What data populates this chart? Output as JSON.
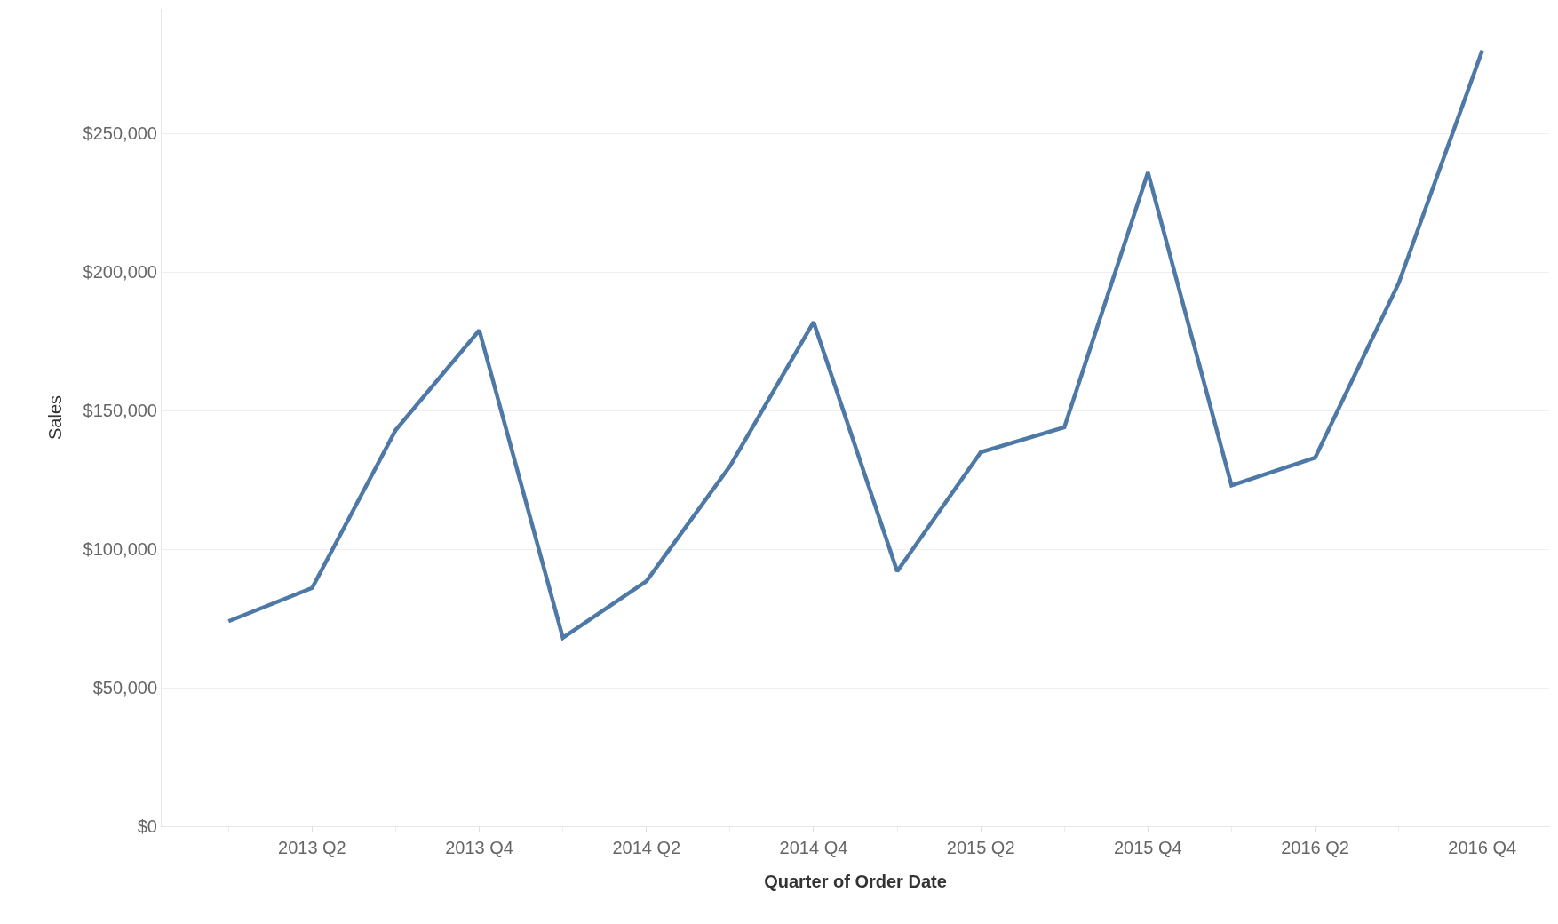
{
  "chart_data": {
    "type": "line",
    "xlabel": "Quarter of Order Date",
    "ylabel": "Sales",
    "categories": [
      null,
      "2013 Q2",
      null,
      "2013 Q4",
      null,
      "2014 Q2",
      null,
      "2014 Q4",
      null,
      "2015 Q2",
      null,
      "2015 Q4",
      null,
      "2016 Q2",
      null,
      "2016 Q4"
    ],
    "series": [
      {
        "color": "#4e79a7",
        "values": [
          74000,
          86000,
          143000,
          179000,
          68000,
          88500,
          130000,
          182000,
          92000,
          135000,
          144000,
          236000,
          123000,
          133000,
          196000,
          280000
        ]
      }
    ],
    "ylim": [
      0,
      295000
    ],
    "yticks": [
      {
        "value": 0,
        "label": "$0"
      },
      {
        "value": 50000,
        "label": "$50,000"
      },
      {
        "value": 100000,
        "label": "$100,000"
      },
      {
        "value": 150000,
        "label": "$150,000"
      },
      {
        "value": 200000,
        "label": "$200,000"
      },
      {
        "value": 250000,
        "label": "$250,000"
      }
    ],
    "grid": "y",
    "legend": false,
    "marker": "none",
    "line_style": "solid"
  }
}
